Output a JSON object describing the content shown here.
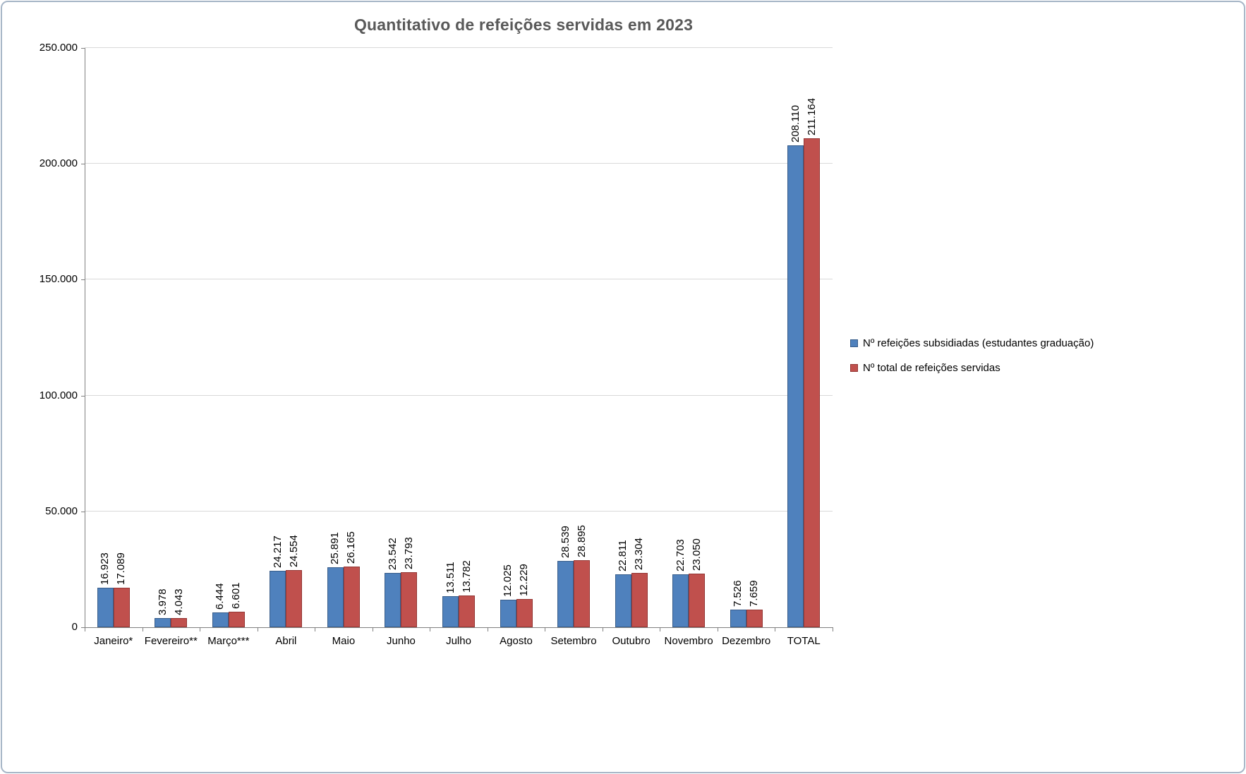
{
  "title": "Quantitativo de refeições servidas em 2023",
  "colors": {
    "series1_fill": "#4F81BD",
    "series1_border": "#385D8A",
    "series2_fill": "#C0504D",
    "series2_border": "#943634",
    "gridline": "#D9D9D9",
    "axis_line": "#808080",
    "title_color": "#595959",
    "chart_border": "#A7B6C7"
  },
  "legend": {
    "items": [
      {
        "label": "Nº refeições subsidiadas (estudantes graduação)",
        "fill": "#4F81BD",
        "border": "#385D8A"
      },
      {
        "label": "Nº total de refeições servidas",
        "fill": "#C0504D",
        "border": "#943634"
      }
    ]
  },
  "chart_data": {
    "type": "bar",
    "title": "Quantitativo de refeições servidas em 2023",
    "xlabel": "",
    "ylabel": "",
    "grid": true,
    "legend_position": "right",
    "ylim": [
      0,
      250000
    ],
    "yticks": [
      0,
      50000,
      100000,
      150000,
      200000,
      250000
    ],
    "ytick_labels": [
      "0",
      "50.000",
      "100.000",
      "150.000",
      "200.000",
      "250.000"
    ],
    "categories": [
      "Janeiro*",
      "Fevereiro**",
      "Março***",
      "Abril",
      "Maio",
      "Junho",
      "Julho",
      "Agosto",
      "Setembro",
      "Outubro",
      "Novembro",
      "Dezembro",
      "TOTAL"
    ],
    "series": [
      {
        "name": "Nº refeições subsidiadas (estudantes graduação)",
        "values": [
          16923,
          3978,
          6444,
          24217,
          25891,
          23542,
          13511,
          12025,
          28539,
          22811,
          22703,
          7526,
          208110
        ],
        "labels": [
          "16.923",
          "3.978",
          "6.444",
          "24.217",
          "25.891",
          "23.542",
          "13.511",
          "12.025",
          "28.539",
          "22.811",
          "22.703",
          "7.526",
          "208.110"
        ]
      },
      {
        "name": "Nº total de refeições servidas",
        "values": [
          17089,
          4043,
          6601,
          24554,
          26165,
          23793,
          13782,
          12229,
          28895,
          23304,
          23050,
          7659,
          211164
        ],
        "labels": [
          "17.089",
          "4.043",
          "6.601",
          "24.554",
          "26.165",
          "23.793",
          "13.782",
          "12.229",
          "28.895",
          "23.304",
          "23.050",
          "7.659",
          "211.164"
        ]
      }
    ]
  }
}
